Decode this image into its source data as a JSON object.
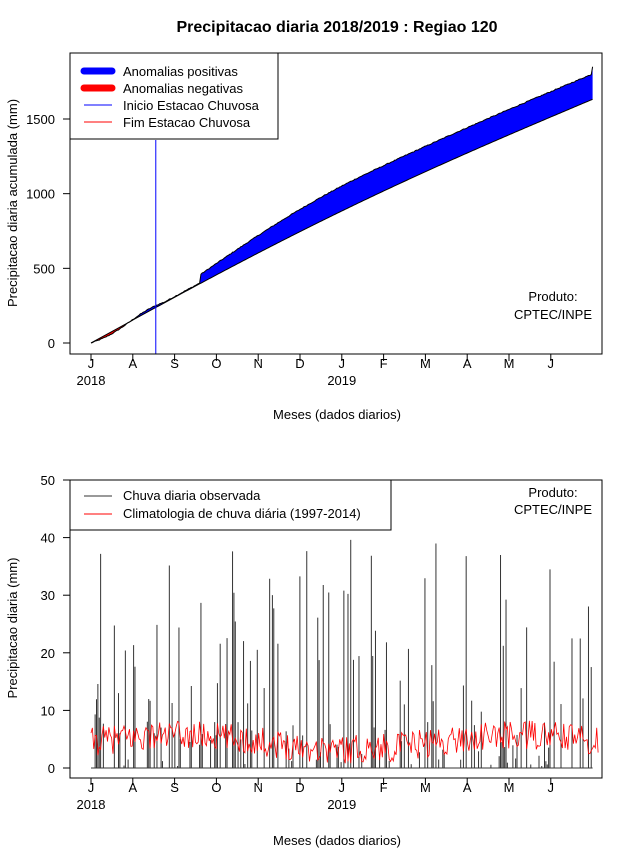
{
  "chart_data": [
    {
      "type": "area",
      "title": "Precipitacao diaria 2018/2019 : Regiao 120",
      "xlabel": "Meses (dados diarios)",
      "ylabel": "Precipitacao diaria acumulada (mm)",
      "ylim": [
        0,
        1900
      ],
      "yticks": [
        0,
        500,
        1000,
        1500
      ],
      "month_labels": [
        "J",
        "A",
        "S",
        "O",
        "N",
        "D",
        "J",
        "F",
        "M",
        "A",
        "M",
        "J"
      ],
      "year_labels": [
        "2018",
        "2019"
      ],
      "wet_season_start_month_index": 1.55,
      "observed_total_end": 1850,
      "climatology_total_end": 1700,
      "series": [
        {
          "name": "Anomalias positivas",
          "color": "#0000ff"
        },
        {
          "name": "Anomalias negativas",
          "color": "#ff0000"
        },
        {
          "name": "Inicio Estacao Chuvosa",
          "color": "#0000ff"
        },
        {
          "name": "Fim Estacao Chuvosa",
          "color": "#ff0000"
        }
      ],
      "annotation": [
        "Produto:",
        "CPTEC/INPE"
      ]
    },
    {
      "type": "bar",
      "xlabel": "Meses (dados diarios)",
      "ylabel": "Precipitacao diaria (mm)",
      "ylim": [
        0,
        50
      ],
      "yticks": [
        0,
        10,
        20,
        30,
        40,
        50
      ],
      "month_labels": [
        "J",
        "A",
        "S",
        "O",
        "N",
        "D",
        "J",
        "F",
        "M",
        "A",
        "M",
        "J"
      ],
      "year_labels": [
        "2018",
        "2019"
      ],
      "series": [
        {
          "name": "Chuva diaria observada",
          "color": "#333333"
        },
        {
          "name": "Climatologia de chuva diária (1997-2014)",
          "color": "#ff0000"
        }
      ],
      "annotation": [
        "Produto:",
        "CPTEC/INPE"
      ]
    }
  ]
}
